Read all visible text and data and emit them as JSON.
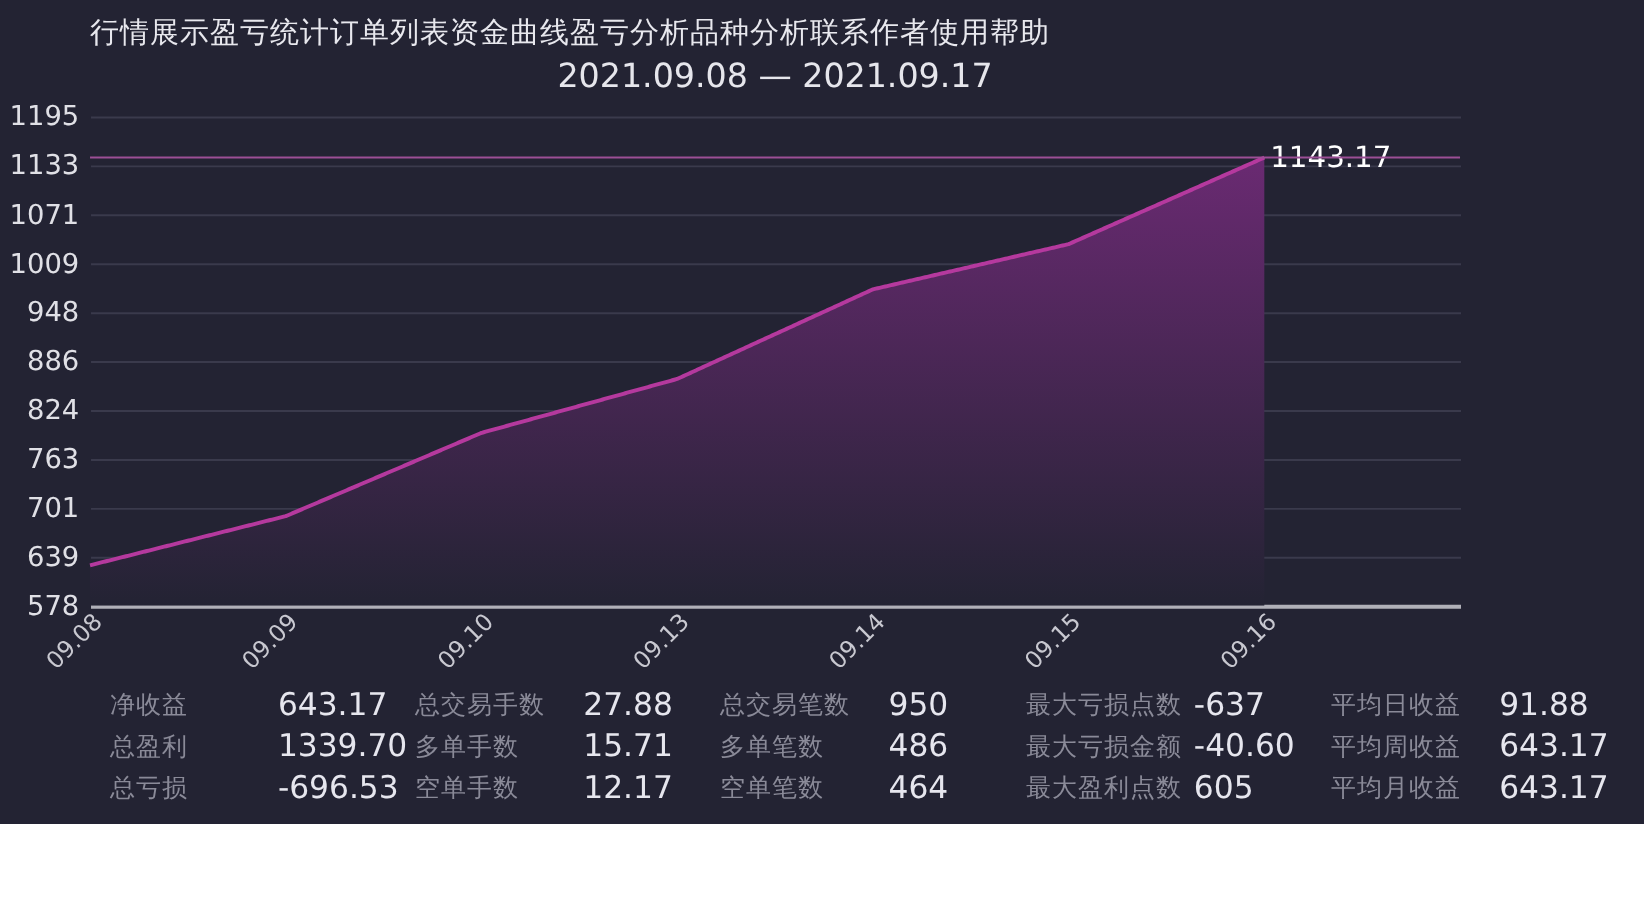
{
  "chart_data": {
    "type": "area",
    "title": "2021.09.08 — 2021.09.17",
    "categories": [
      "09.08",
      "09.09",
      "09.10",
      "09.13",
      "09.14",
      "09.15",
      "09.16",
      null
    ],
    "series": [
      {
        "color": "#b5399e",
        "values": [
          629,
          691,
          796,
          864,
          977,
          1034,
          1143.17,
          null
        ],
        "value_labels": [
          null,
          null,
          null,
          null,
          null,
          null,
          "1143.17",
          null
        ]
      }
    ],
    "ylim": [
      578,
      1195
    ],
    "yticks": [
      578,
      639,
      701,
      763,
      824,
      886,
      948,
      1009,
      1071,
      1133,
      1195
    ],
    "grid": "y",
    "marker": "none",
    "line_style": "solid",
    "ref_lines": [
      {
        "axis": "y",
        "value": 1143.17,
        "color": "#9c4f96"
      }
    ],
    "annotations": [
      "行情展示盈亏统计订单列表资金曲线盈亏分析品种分析联系作者使用帮助",
      "净收益",
      "643.17",
      "总盈利",
      "1339.70",
      "总亏损",
      "-696.53",
      "总交易手数",
      "27.88",
      "多单手数",
      "15.71",
      "空单手数",
      "12.17",
      "总交易笔数",
      "950",
      "多单笔数",
      "486",
      "空单笔数",
      "464",
      "最大亏损点数",
      "-637",
      "最大亏损金额",
      "-40.60",
      "最大盈利点数",
      "605",
      "平均日收益",
      "91.88",
      "平均周收益",
      "643.17",
      "平均月收益",
      "643.17"
    ]
  }
}
